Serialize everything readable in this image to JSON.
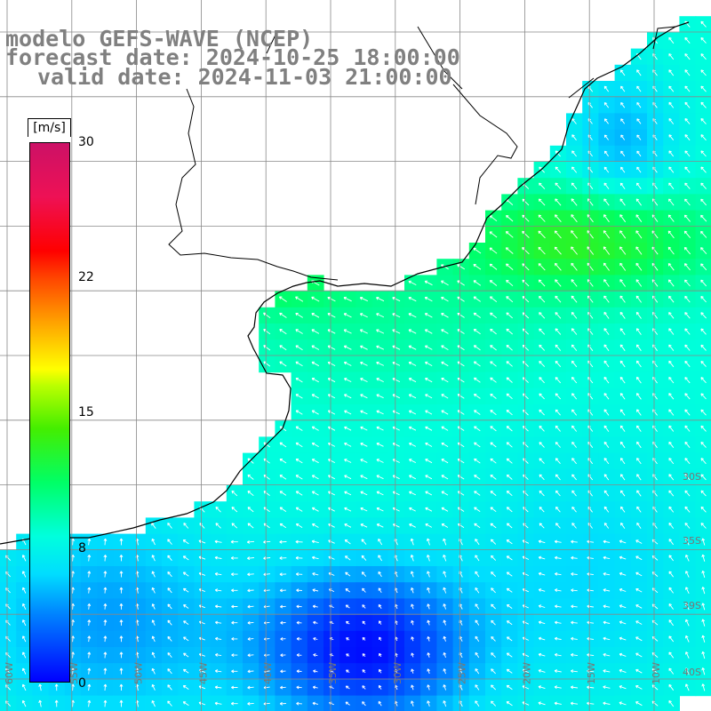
{
  "title": {
    "line1": "modelo GEFS-WAVE (NCEP)",
    "line2": "forecast date: 2024-10-25 18:00:00",
    "line3": "valid date: 2024-11-03 21:00:00"
  },
  "colorbar": {
    "unit": "[m/s]",
    "ticks": [
      "30",
      "22",
      "15",
      "8",
      "0"
    ],
    "tick_values": [
      30,
      22,
      15,
      8,
      0
    ],
    "range": [
      0,
      30
    ],
    "colors": [
      "#0000ff",
      "#0088ff",
      "#00ddff",
      "#00ffdd",
      "#00ff66",
      "#44ee00",
      "#bbff00",
      "#ffff00",
      "#ffaa00",
      "#ff4400",
      "#ff0000",
      "#cc1166"
    ]
  },
  "map": {
    "variable": "wind speed",
    "longitudes": [
      "60W",
      "55W",
      "50W",
      "45W",
      "40W",
      "35W",
      "30W",
      "25W",
      "20W",
      "15W",
      "10W"
    ],
    "latitudes": [
      "30S",
      "35S",
      "39S",
      "40S"
    ],
    "land_color": "#ffffff",
    "coast_color": "#000000",
    "grid_color": "#888888"
  }
}
